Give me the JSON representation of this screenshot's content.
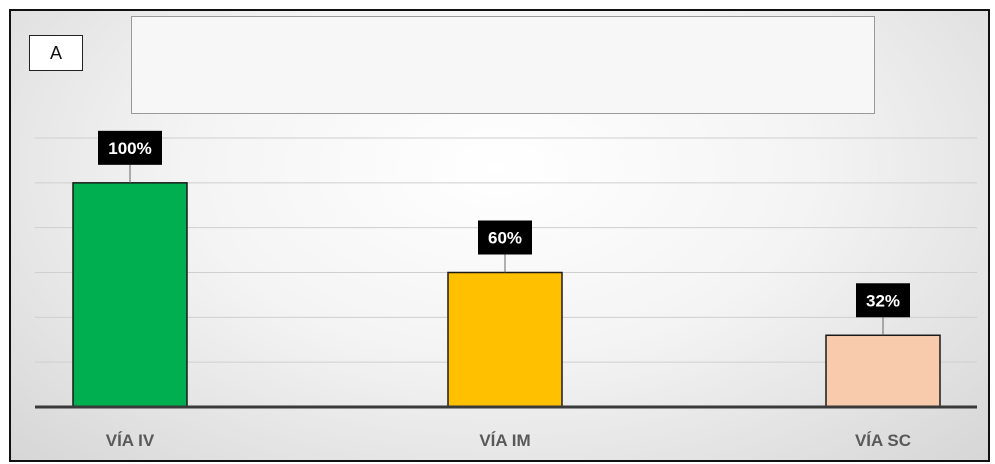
{
  "panel_label": "A",
  "chart_data": {
    "type": "bar",
    "categories": [
      "VÍA IV",
      "VÍA IM",
      "VÍA SC"
    ],
    "values": [
      100,
      60,
      32
    ],
    "data_labels": [
      "100%",
      "60%",
      "32%"
    ],
    "colors": [
      "#00b050",
      "#ffc000",
      "#f8cbad"
    ],
    "title": "",
    "xlabel": "",
    "ylabel": "",
    "ylim": [
      0,
      120
    ],
    "grid": true
  }
}
